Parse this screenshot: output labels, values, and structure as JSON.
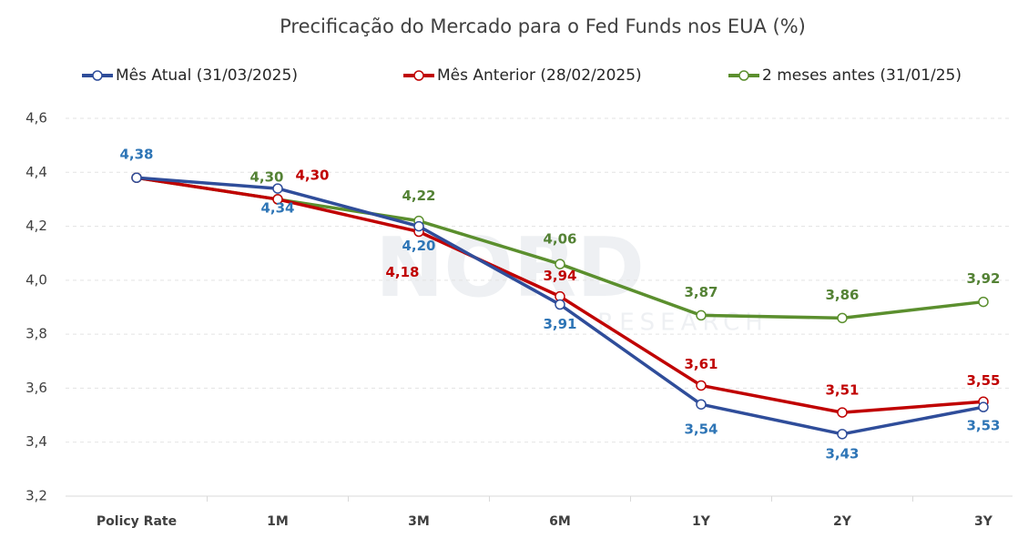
{
  "chart_data": {
    "type": "line",
    "title": "Precificação do Mercado para o Fed Funds nos EUA (%)",
    "watermark": [
      "NORD",
      "RESEARCH"
    ],
    "categories": [
      "Policy Rate",
      "1M",
      "3M",
      "6M",
      "1Y",
      "2Y",
      "3Y"
    ],
    "ylim": [
      3.2,
      4.6
    ],
    "yticks": [
      {
        "value": 3.2,
        "label": "3,2"
      },
      {
        "value": 3.4,
        "label": "3,4"
      },
      {
        "value": 3.6,
        "label": "3,6"
      },
      {
        "value": 3.8,
        "label": "3,8"
      },
      {
        "value": 4.0,
        "label": "4,0"
      },
      {
        "value": 4.2,
        "label": "4,2"
      },
      {
        "value": 4.4,
        "label": "4,4"
      },
      {
        "value": 4.6,
        "label": "4,6"
      }
    ],
    "grid": true,
    "legend": "top",
    "series": [
      {
        "name": "Mês Atual (31/03/2025)",
        "color": "#2f4d9a",
        "label_color": "#2e75b6",
        "values": [
          4.38,
          4.34,
          4.2,
          3.91,
          3.54,
          3.43,
          3.53
        ],
        "value_labels": [
          "4,38",
          "4,34",
          "4,20",
          "3,91",
          "3,54",
          "3,43",
          "3,53"
        ]
      },
      {
        "name": "Mês Anterior (28/02/2025)",
        "color": "#c00000",
        "label_color": "#c00000",
        "values": [
          4.38,
          4.3,
          4.18,
          3.94,
          3.61,
          3.51,
          3.55
        ],
        "value_labels": [
          null,
          "4,30",
          "4,18",
          "3,94",
          "3,61",
          "3,51",
          "3,55"
        ]
      },
      {
        "name": "2 meses antes (31/01/25)",
        "color": "#5b8f2e",
        "label_color": "#548235",
        "values": [
          4.38,
          4.3,
          4.22,
          4.06,
          3.87,
          3.86,
          3.92
        ],
        "value_labels": [
          null,
          "4,30",
          "4,22",
          "4,06",
          "3,87",
          "3,86",
          "3,92"
        ]
      }
    ]
  }
}
